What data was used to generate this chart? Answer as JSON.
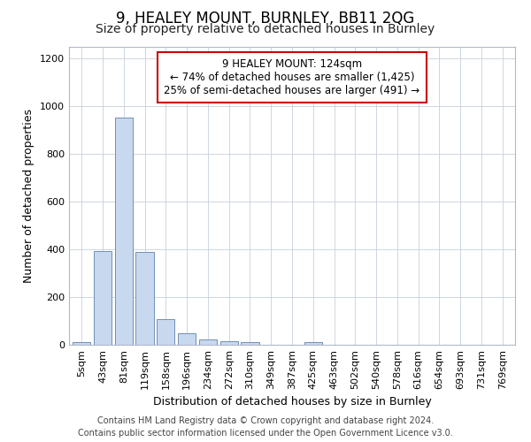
{
  "title": "9, HEALEY MOUNT, BURNLEY, BB11 2QG",
  "subtitle": "Size of property relative to detached houses in Burnley",
  "xlabel": "Distribution of detached houses by size in Burnley",
  "ylabel": "Number of detached properties",
  "categories": [
    "5sqm",
    "43sqm",
    "81sqm",
    "119sqm",
    "158sqm",
    "196sqm",
    "234sqm",
    "272sqm",
    "310sqm",
    "349sqm",
    "387sqm",
    "425sqm",
    "463sqm",
    "502sqm",
    "540sqm",
    "578sqm",
    "616sqm",
    "654sqm",
    "693sqm",
    "731sqm",
    "769sqm"
  ],
  "values": [
    10,
    393,
    952,
    390,
    108,
    50,
    22,
    15,
    10,
    0,
    0,
    10,
    0,
    0,
    0,
    0,
    0,
    0,
    0,
    0,
    0
  ],
  "bar_color": "#c8d8ee",
  "bar_edgecolor": "#7090b8",
  "annotation_text": "9 HEALEY MOUNT: 124sqm\n← 74% of detached houses are smaller (1,425)\n25% of semi-detached houses are larger (491) →",
  "annotation_box_facecolor": "#ffffff",
  "annotation_box_edgecolor": "#cc0000",
  "ylim": [
    0,
    1250
  ],
  "yticks": [
    0,
    200,
    400,
    600,
    800,
    1000,
    1200
  ],
  "footer_line1": "Contains HM Land Registry data © Crown copyright and database right 2024.",
  "footer_line2": "Contains public sector information licensed under the Open Government Licence v3.0.",
  "background_color": "#ffffff",
  "plot_background_color": "#ffffff",
  "grid_color": "#c8d0dc",
  "title_fontsize": 12,
  "subtitle_fontsize": 10,
  "axis_label_fontsize": 9,
  "tick_fontsize": 8,
  "annotation_fontsize": 8.5,
  "footer_fontsize": 7
}
